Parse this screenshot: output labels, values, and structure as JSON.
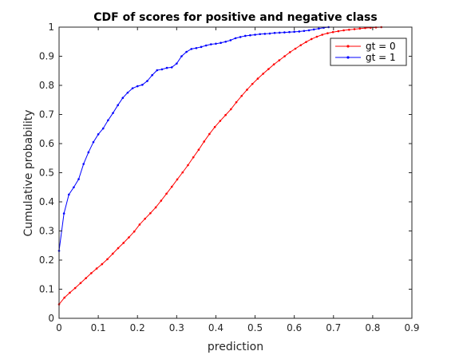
{
  "chart_data": {
    "type": "line",
    "title": "CDF of scores for positive and negative class",
    "xlabel": "prediction",
    "ylabel": "Cumulative probability",
    "xlim": [
      0,
      0.9
    ],
    "ylim": [
      0,
      1
    ],
    "xticks": [
      "0",
      "0.1",
      "0.2",
      "0.3",
      "0.4",
      "0.5",
      "0.6",
      "0.7",
      "0.8",
      "0.9"
    ],
    "yticks": [
      "0",
      "0.1",
      "0.2",
      "0.3",
      "0.4",
      "0.5",
      "0.6",
      "0.7",
      "0.8",
      "0.9",
      "1"
    ],
    "grid": false,
    "legend_position": "top-right",
    "series": [
      {
        "name": "gt = 0",
        "color": "#ff0000",
        "x": [
          0,
          0.0137,
          0.0274,
          0.0411,
          0.0548,
          0.0685,
          0.0822,
          0.0959,
          0.1096,
          0.1233,
          0.137,
          0.1507,
          0.1644,
          0.1781,
          0.1918,
          0.2055,
          0.2192,
          0.2329,
          0.2466,
          0.2603,
          0.274,
          0.2877,
          0.3014,
          0.3151,
          0.3288,
          0.3425,
          0.3562,
          0.3699,
          0.3836,
          0.3973,
          0.411,
          0.4247,
          0.4384,
          0.4521,
          0.4658,
          0.4795,
          0.4932,
          0.5069,
          0.5206,
          0.5343,
          0.548,
          0.5617,
          0.5754,
          0.5891,
          0.6028,
          0.6165,
          0.6302,
          0.6439,
          0.6576,
          0.6713,
          0.685,
          0.6987,
          0.7124,
          0.7261,
          0.7398,
          0.7535,
          0.7672,
          0.7809,
          0.7946,
          0.8083,
          0.822
        ],
        "y": [
          0.048,
          0.071,
          0.088,
          0.104,
          0.121,
          0.138,
          0.155,
          0.171,
          0.186,
          0.203,
          0.222,
          0.241,
          0.259,
          0.278,
          0.298,
          0.322,
          0.342,
          0.361,
          0.381,
          0.404,
          0.428,
          0.452,
          0.477,
          0.501,
          0.526,
          0.553,
          0.579,
          0.607,
          0.633,
          0.657,
          0.678,
          0.698,
          0.718,
          0.742,
          0.764,
          0.785,
          0.805,
          0.823,
          0.84,
          0.856,
          0.872,
          0.886,
          0.9,
          0.914,
          0.926,
          0.938,
          0.949,
          0.959,
          0.967,
          0.974,
          0.979,
          0.983,
          0.986,
          0.989,
          0.991,
          0.993,
          0.995,
          0.997,
          0.998,
          0.999,
          1.0
        ]
      },
      {
        "name": "gt = 1",
        "color": "#0000ff",
        "x": [
          0,
          0.0125,
          0.025,
          0.0375,
          0.05,
          0.0625,
          0.075,
          0.0875,
          0.1,
          0.1125,
          0.125,
          0.1375,
          0.15,
          0.1625,
          0.175,
          0.1875,
          0.2,
          0.2125,
          0.225,
          0.2375,
          0.25,
          0.2625,
          0.275,
          0.2875,
          0.3,
          0.3125,
          0.325,
          0.3375,
          0.35,
          0.3625,
          0.375,
          0.3875,
          0.4,
          0.4125,
          0.425,
          0.4375,
          0.45,
          0.4625,
          0.475,
          0.4875,
          0.5,
          0.5125,
          0.525,
          0.5375,
          0.55,
          0.5625,
          0.575,
          0.5875,
          0.6,
          0.6125,
          0.625,
          0.6375,
          0.65,
          0.6625,
          0.675,
          0.6875
        ],
        "y": [
          0.232,
          0.36,
          0.425,
          0.45,
          0.478,
          0.53,
          0.57,
          0.605,
          0.632,
          0.652,
          0.68,
          0.705,
          0.732,
          0.757,
          0.775,
          0.79,
          0.797,
          0.802,
          0.815,
          0.835,
          0.852,
          0.855,
          0.86,
          0.862,
          0.875,
          0.9,
          0.915,
          0.925,
          0.928,
          0.932,
          0.937,
          0.941,
          0.943,
          0.946,
          0.95,
          0.955,
          0.962,
          0.966,
          0.97,
          0.972,
          0.974,
          0.976,
          0.977,
          0.978,
          0.98,
          0.981,
          0.982,
          0.983,
          0.984,
          0.985,
          0.987,
          0.989,
          0.992,
          0.995,
          0.998,
          1.0
        ]
      }
    ]
  }
}
